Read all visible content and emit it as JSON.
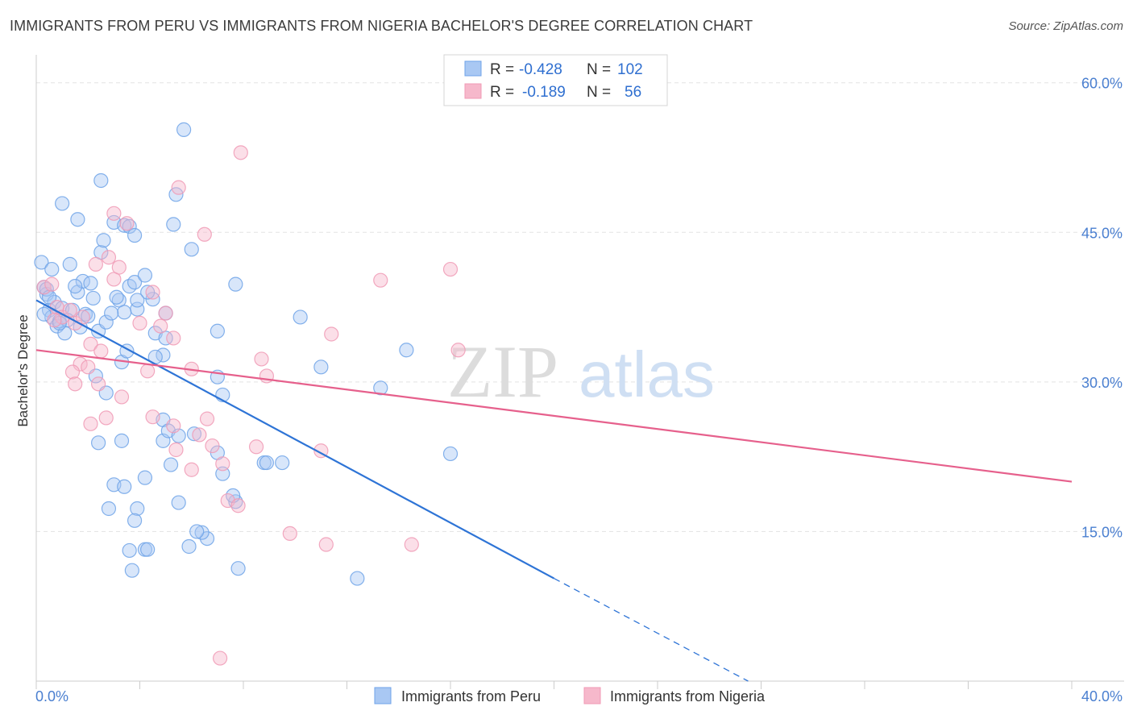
{
  "header": {
    "title": "IMMIGRANTS FROM PERU VS IMMIGRANTS FROM NIGERIA BACHELOR'S DEGREE CORRELATION CHART",
    "source": "Source: ZipAtlas.com"
  },
  "watermark": {
    "zip": "ZIP",
    "atlas": "atlas"
  },
  "stats_legend": {
    "rows": [
      {
        "r_label": "R =",
        "r_value": "-0.428",
        "n_label": "N =",
        "n_value": "102",
        "color": "#a9c8f3"
      },
      {
        "r_label": "R =",
        "r_value": "-0.189",
        "n_label": "N =",
        "n_value": "56",
        "color": "#f6b8cb"
      }
    ]
  },
  "chart_data": {
    "type": "scatter",
    "title": "IMMIGRANTS FROM PERU VS IMMIGRANTS FROM NIGERIA BACHELOR'S DEGREE CORRELATION CHART",
    "xlabel": "",
    "ylabel": "Bachelor's Degree",
    "xlim": [
      0,
      40
    ],
    "ylim": [
      0,
      62
    ],
    "x_tick_labels": [
      "0.0%",
      "40.0%"
    ],
    "y_ticks": [
      15,
      30,
      45,
      60
    ],
    "y_tick_labels": [
      "15.0%",
      "30.0%",
      "45.0%",
      "60.0%"
    ],
    "grid": true,
    "legend_position": "bottom",
    "series": [
      {
        "name": "Immigrants from Peru",
        "color": "#6fa3e8",
        "fill": "#a9c8f3",
        "line_color": "#2e74d6",
        "trend": {
          "x0": 0,
          "y0": 38.2,
          "x1": 20,
          "y1": 10.3,
          "dashed_to_x": 27.5,
          "dashed_to_y": 0
        },
        "points": [
          [
            0.2,
            42.0
          ],
          [
            0.3,
            39.5
          ],
          [
            0.4,
            38.8
          ],
          [
            0.5,
            37.2
          ],
          [
            0.6,
            36.5
          ],
          [
            0.3,
            36.8
          ],
          [
            0.7,
            38.0
          ],
          [
            0.8,
            35.6
          ],
          [
            0.9,
            36.1
          ],
          [
            1.0,
            37.4
          ],
          [
            0.6,
            41.3
          ],
          [
            1.3,
            41.8
          ],
          [
            1.6,
            39.0
          ],
          [
            1.8,
            40.1
          ],
          [
            2.1,
            39.9
          ],
          [
            2.2,
            38.4
          ],
          [
            1.4,
            37.2
          ],
          [
            1.1,
            34.9
          ],
          [
            1.9,
            36.8
          ],
          [
            2.4,
            35.1
          ],
          [
            2.7,
            36.0
          ],
          [
            3.2,
            38.2
          ],
          [
            3.6,
            39.6
          ],
          [
            3.9,
            37.3
          ],
          [
            4.5,
            38.3
          ],
          [
            4.3,
            39.0
          ],
          [
            4.6,
            34.9
          ],
          [
            3.4,
            37.0
          ],
          [
            3.8,
            40.0
          ],
          [
            4.2,
            40.7
          ],
          [
            2.5,
            43.0
          ],
          [
            2.6,
            44.2
          ],
          [
            3.0,
            46.0
          ],
          [
            3.4,
            45.7
          ],
          [
            3.6,
            45.6
          ],
          [
            3.8,
            44.7
          ],
          [
            5.3,
            45.8
          ],
          [
            5.4,
            48.8
          ],
          [
            6.0,
            43.3
          ],
          [
            5.7,
            55.3
          ],
          [
            2.5,
            50.2
          ],
          [
            1.6,
            46.3
          ],
          [
            1.0,
            47.9
          ],
          [
            2.3,
            30.6
          ],
          [
            2.7,
            28.9
          ],
          [
            4.9,
            24.1
          ],
          [
            4.9,
            26.2
          ],
          [
            5.1,
            25.1
          ],
          [
            5.5,
            24.6
          ],
          [
            5.2,
            21.7
          ],
          [
            3.3,
            24.1
          ],
          [
            2.4,
            23.9
          ],
          [
            4.2,
            20.4
          ],
          [
            3.0,
            19.7
          ],
          [
            3.4,
            19.5
          ],
          [
            3.9,
            17.3
          ],
          [
            2.8,
            17.3
          ],
          [
            3.8,
            16.1
          ],
          [
            5.5,
            17.9
          ],
          [
            4.2,
            13.2
          ],
          [
            4.3,
            13.2
          ],
          [
            3.6,
            13.1
          ],
          [
            3.7,
            11.1
          ],
          [
            5.9,
            13.5
          ],
          [
            6.6,
            14.3
          ],
          [
            6.4,
            14.9
          ],
          [
            6.2,
            15.0
          ],
          [
            7.7,
            18.0
          ],
          [
            7.6,
            18.6
          ],
          [
            8.8,
            21.9
          ],
          [
            8.9,
            21.9
          ],
          [
            9.5,
            21.9
          ],
          [
            7.2,
            20.8
          ],
          [
            7.0,
            22.9
          ],
          [
            7.2,
            28.7
          ],
          [
            7.0,
            30.5
          ],
          [
            7.0,
            35.1
          ],
          [
            7.7,
            39.8
          ],
          [
            10.2,
            36.5
          ],
          [
            11.0,
            31.5
          ],
          [
            13.3,
            29.4
          ],
          [
            14.3,
            33.2
          ],
          [
            16.0,
            22.8
          ],
          [
            12.4,
            10.3
          ],
          [
            7.8,
            11.3
          ],
          [
            3.3,
            32.0
          ],
          [
            3.5,
            33.1
          ],
          [
            4.9,
            32.7
          ],
          [
            5.0,
            36.9
          ],
          [
            3.9,
            38.2
          ],
          [
            1.5,
            39.6
          ],
          [
            0.4,
            39.3
          ],
          [
            1.2,
            36.2
          ],
          [
            0.9,
            35.9
          ],
          [
            0.5,
            38.5
          ],
          [
            1.7,
            35.5
          ],
          [
            2.9,
            36.9
          ],
          [
            3.1,
            38.5
          ],
          [
            2.0,
            36.6
          ],
          [
            4.6,
            32.5
          ],
          [
            5.0,
            34.4
          ],
          [
            6.1,
            24.8
          ]
        ]
      },
      {
        "name": "Immigrants from Nigeria",
        "color": "#f09ab5",
        "fill": "#f6b8cb",
        "line_color": "#e6608c",
        "trend": {
          "x0": 0,
          "y0": 33.2,
          "x1": 40,
          "y1": 20.0
        },
        "points": [
          [
            0.3,
            39.5
          ],
          [
            0.6,
            39.8
          ],
          [
            0.8,
            37.5
          ],
          [
            1.0,
            36.5
          ],
          [
            1.3,
            37.2
          ],
          [
            0.7,
            36.2
          ],
          [
            1.5,
            35.9
          ],
          [
            1.8,
            36.5
          ],
          [
            2.1,
            33.8
          ],
          [
            1.7,
            31.8
          ],
          [
            1.4,
            31.0
          ],
          [
            1.5,
            29.8
          ],
          [
            2.0,
            31.5
          ],
          [
            2.5,
            33.1
          ],
          [
            2.4,
            29.8
          ],
          [
            3.3,
            28.5
          ],
          [
            2.7,
            26.4
          ],
          [
            2.1,
            25.8
          ],
          [
            3.0,
            40.3
          ],
          [
            3.2,
            41.5
          ],
          [
            2.8,
            42.5
          ],
          [
            2.3,
            41.8
          ],
          [
            3.0,
            46.9
          ],
          [
            3.5,
            45.9
          ],
          [
            4.5,
            39.0
          ],
          [
            5.0,
            36.9
          ],
          [
            4.8,
            35.6
          ],
          [
            5.3,
            34.4
          ],
          [
            4.0,
            35.9
          ],
          [
            4.3,
            31.1
          ],
          [
            4.5,
            26.5
          ],
          [
            5.3,
            25.6
          ],
          [
            5.4,
            23.2
          ],
          [
            6.0,
            31.3
          ],
          [
            6.3,
            24.7
          ],
          [
            6.6,
            26.3
          ],
          [
            6.8,
            23.6
          ],
          [
            6.0,
            21.2
          ],
          [
            7.2,
            21.8
          ],
          [
            7.4,
            18.1
          ],
          [
            7.8,
            17.6
          ],
          [
            8.5,
            23.5
          ],
          [
            8.9,
            30.6
          ],
          [
            8.7,
            32.3
          ],
          [
            9.8,
            14.8
          ],
          [
            11.0,
            23.1
          ],
          [
            11.2,
            13.7
          ],
          [
            11.4,
            34.8
          ],
          [
            13.3,
            40.2
          ],
          [
            14.5,
            13.7
          ],
          [
            16.0,
            41.3
          ],
          [
            16.3,
            33.2
          ],
          [
            7.9,
            53.0
          ],
          [
            5.5,
            49.5
          ],
          [
            6.5,
            44.8
          ],
          [
            7.1,
            2.3
          ]
        ]
      }
    ]
  },
  "bottom_legend": {
    "items": [
      {
        "label": "Immigrants from Peru",
        "color": "#a9c8f3",
        "stroke": "#6fa3e8"
      },
      {
        "label": "Immigrants from Nigeria",
        "color": "#f6b8cb",
        "stroke": "#f09ab5"
      }
    ]
  }
}
